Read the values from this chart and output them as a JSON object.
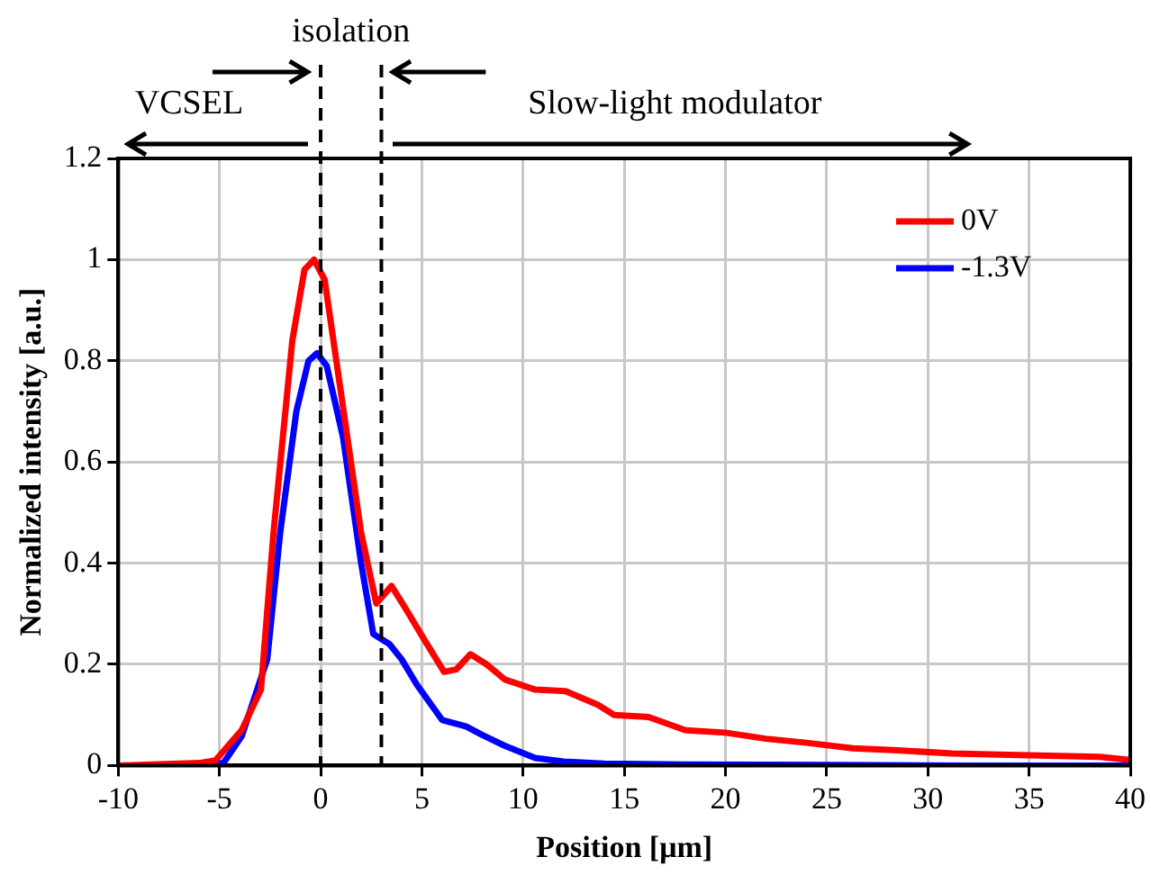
{
  "chart_data": {
    "type": "line",
    "xlabel": "Position [μm]",
    "ylabel": "Normalized intensity [a.u.]",
    "xlim": [
      -10,
      40
    ],
    "xticks": [
      -10,
      -5,
      0,
      5,
      10,
      15,
      20,
      25,
      30,
      35,
      40
    ],
    "ylim": [
      0,
      1.2
    ],
    "yticks": [
      0,
      0.2,
      0.4,
      0.6,
      0.8,
      1,
      1.2
    ],
    "grid": true,
    "legend": "top right",
    "marker": "none",
    "line_style": "solid",
    "annotations": [
      "isolation",
      "VCSEL",
      "Slow-light modulator"
    ],
    "ref_lines": [
      {
        "axis": "x",
        "value": 0,
        "color": "#000000",
        "line_style": "dashed"
      },
      {
        "axis": "x",
        "value": 3,
        "color": "#000000",
        "line_style": "dashed"
      }
    ],
    "series": [
      {
        "name": "0V",
        "color": "#ff0000",
        "x": [
          -10,
          -6,
          -5.2,
          -3.9,
          -2.95,
          -2.33,
          -1.4,
          -0.8,
          -0.33,
          0.2,
          1.1,
          2.0,
          2.75,
          3.5,
          4.2,
          5.1,
          6.1,
          6.7,
          7.4,
          8.2,
          9.1,
          10.6,
          12.1,
          13.7,
          14.5,
          16.2,
          18,
          20,
          22,
          24,
          26.3,
          28.5,
          31.2,
          34,
          36.5,
          38.5,
          40
        ],
        "values": [
          0,
          0.005,
          0.01,
          0.07,
          0.15,
          0.46,
          0.84,
          0.98,
          1.0,
          0.96,
          0.71,
          0.46,
          0.32,
          0.355,
          0.31,
          0.25,
          0.185,
          0.19,
          0.22,
          0.2,
          0.17,
          0.15,
          0.147,
          0.12,
          0.1,
          0.096,
          0.07,
          0.065,
          0.053,
          0.045,
          0.034,
          0.03,
          0.024,
          0.021,
          0.019,
          0.017,
          0.011
        ]
      },
      {
        "name": "-1.3V",
        "color": "#0000ff",
        "x": [
          -10,
          -6,
          -4.8,
          -3.9,
          -2.64,
          -2.0,
          -1.2,
          -0.6,
          -0.18,
          0.3,
          1.1,
          2.0,
          2.6,
          3.4,
          4.0,
          4.75,
          6.0,
          7.2,
          8.0,
          9.1,
          10.6,
          12,
          14,
          18,
          25,
          32,
          40
        ],
        "values": [
          0,
          0,
          0.005,
          0.058,
          0.21,
          0.46,
          0.7,
          0.8,
          0.815,
          0.79,
          0.65,
          0.4,
          0.26,
          0.24,
          0.21,
          0.16,
          0.09,
          0.077,
          0.06,
          0.039,
          0.015,
          0.008,
          0.004,
          0.002,
          0.001,
          0,
          0
        ]
      }
    ]
  }
}
